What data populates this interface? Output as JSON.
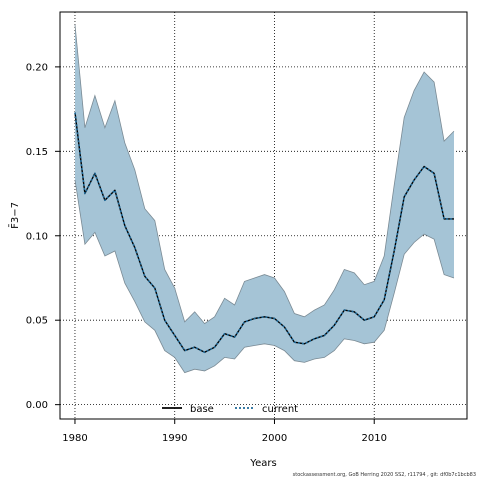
{
  "chart_data": {
    "type": "line",
    "xlabel": "Years",
    "ylabel": "F̄3−7",
    "xlim": [
      1978.5,
      2019.3
    ],
    "ylim": [
      -0.0085,
      0.2325
    ],
    "grid": true,
    "x_ticks": [
      "1980",
      "1990",
      "2000",
      "2010"
    ],
    "y_ticks": [
      "0.00",
      "0.05",
      "0.10",
      "0.15",
      "0.20"
    ],
    "legend_position": "bottom-center",
    "x": [
      1980,
      1981,
      1982,
      1983,
      1984,
      1985,
      1986,
      1987,
      1988,
      1989,
      1990,
      1991,
      1992,
      1993,
      1994,
      1995,
      1996,
      1997,
      1998,
      1999,
      2000,
      2001,
      2002,
      2003,
      2004,
      2005,
      2006,
      2007,
      2008,
      2009,
      2010,
      2011,
      2012,
      2013,
      2014,
      2015,
      2016,
      2017,
      2018
    ],
    "series": [
      {
        "name": "base",
        "style": "solid",
        "color": "#000000",
        "values": [
          0.173,
          0.125,
          0.137,
          0.121,
          0.127,
          0.106,
          0.093,
          0.076,
          0.069,
          0.05,
          0.041,
          0.032,
          0.034,
          0.031,
          0.034,
          0.042,
          0.04,
          0.049,
          0.051,
          0.052,
          0.051,
          0.046,
          0.037,
          0.036,
          0.039,
          0.041,
          0.047,
          0.056,
          0.055,
          0.05,
          0.052,
          0.062,
          0.091,
          0.123,
          0.133,
          0.141,
          0.137,
          0.11,
          0.11
        ]
      },
      {
        "name": "current",
        "style": "dotted",
        "color": "#1f6a99",
        "values": [
          0.173,
          0.125,
          0.137,
          0.121,
          0.127,
          0.106,
          0.093,
          0.076,
          0.069,
          0.05,
          0.041,
          0.032,
          0.034,
          0.031,
          0.034,
          0.042,
          0.04,
          0.049,
          0.051,
          0.052,
          0.051,
          0.046,
          0.037,
          0.036,
          0.039,
          0.041,
          0.047,
          0.056,
          0.055,
          0.05,
          0.052,
          0.062,
          0.091,
          0.123,
          0.133,
          0.141,
          0.137,
          0.11,
          0.11
        ]
      }
    ],
    "band": {
      "color": "#a5c4d6",
      "upper": [
        0.225,
        0.164,
        0.183,
        0.164,
        0.18,
        0.155,
        0.139,
        0.116,
        0.109,
        0.08,
        0.069,
        0.049,
        0.055,
        0.048,
        0.052,
        0.063,
        0.059,
        0.073,
        0.075,
        0.077,
        0.075,
        0.067,
        0.054,
        0.052,
        0.056,
        0.059,
        0.068,
        0.08,
        0.078,
        0.071,
        0.073,
        0.088,
        0.13,
        0.17,
        0.186,
        0.197,
        0.191,
        0.156,
        0.162
      ],
      "lower": [
        0.133,
        0.095,
        0.102,
        0.088,
        0.091,
        0.072,
        0.061,
        0.049,
        0.044,
        0.032,
        0.028,
        0.019,
        0.021,
        0.02,
        0.023,
        0.028,
        0.027,
        0.034,
        0.035,
        0.036,
        0.035,
        0.032,
        0.026,
        0.025,
        0.027,
        0.028,
        0.032,
        0.039,
        0.038,
        0.036,
        0.037,
        0.044,
        0.066,
        0.089,
        0.096,
        0.101,
        0.098,
        0.077,
        0.075
      ]
    }
  },
  "footer": "stockassessment.org, GoB Herring 2020 SS2, r11794 , git: df0b7c1bcb83"
}
